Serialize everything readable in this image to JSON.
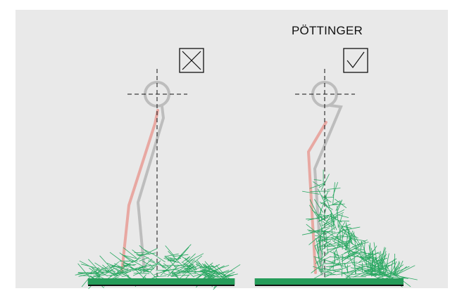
{
  "brand_label": "PÖTTINGER",
  "panels": [
    {
      "id": "left",
      "verdict": "incorrect",
      "verdict_icon": "cross-icon"
    },
    {
      "id": "right",
      "verdict": "correct",
      "verdict_icon": "checkmark-icon"
    }
  ],
  "colors": {
    "background": "#e9e9e9",
    "tine_grey": "#bdbdbd",
    "tine_red": "#e8a8a2",
    "grass": "#2aa862",
    "ground": "#111111"
  }
}
